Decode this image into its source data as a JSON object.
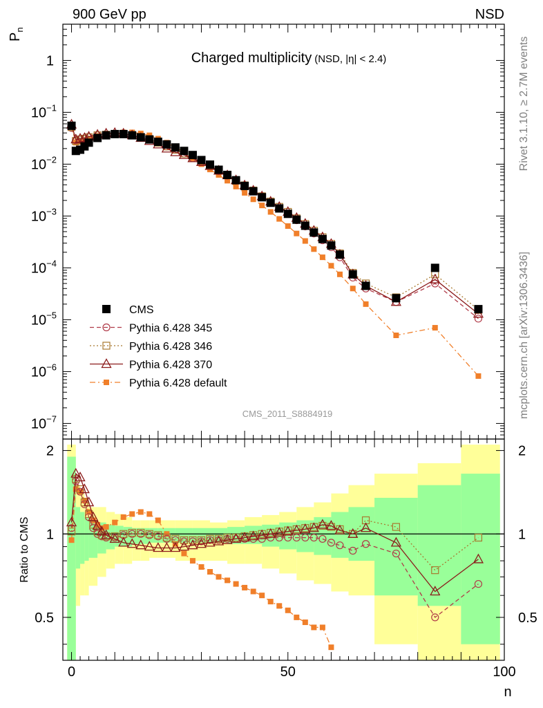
{
  "header": {
    "left": "900 GeV pp",
    "right": "NSD"
  },
  "side_labels": {
    "rivet": "Rivet 3.1.10, ≥ 2.7M events",
    "mcplots": "mcplots.cern.ch [arXiv:1306.3436]"
  },
  "chart_data": [
    {
      "type": "scatter",
      "panel": "main",
      "title": "Charged multiplicity",
      "subtitle": "(NSD, |η| < 2.4)",
      "ylabel": "P",
      "ylabel_sub": "n",
      "yscale": "log",
      "xlim": [
        -2,
        100
      ],
      "ylim": [
        5e-08,
        5
      ],
      "ytick_labels": [
        {
          "base": "1",
          "exp": ""
        },
        {
          "base": "10",
          "exp": "−1"
        },
        {
          "base": "10",
          "exp": "−2"
        },
        {
          "base": "10",
          "exp": "−3"
        },
        {
          "base": "10",
          "exp": "−4"
        },
        {
          "base": "10",
          "exp": "−5"
        },
        {
          "base": "10",
          "exp": "−6"
        },
        {
          "base": "10",
          "exp": "−7"
        }
      ],
      "ytick_values": [
        1,
        0.1,
        0.01,
        0.001,
        0.0001,
        1e-05,
        1e-06,
        1e-07
      ],
      "watermark": "CMS_2011_S8884919",
      "legend": {
        "placement": "bottom-left",
        "entries": [
          "CMS",
          "Pythia 6.428 345",
          "Pythia 6.428 346",
          "Pythia 6.428 370",
          "Pythia 6.428 default"
        ]
      },
      "series": [
        {
          "name": "CMS",
          "color": "#000000",
          "marker": "filled-square",
          "line": "none",
          "x": [
            0,
            1,
            2,
            3,
            4,
            6,
            8,
            10,
            12,
            14,
            16,
            18,
            20,
            22,
            24,
            26,
            28,
            30,
            32,
            34,
            36,
            38,
            40,
            42,
            44,
            46,
            48,
            50,
            52,
            54,
            56,
            58,
            60,
            62,
            65,
            68,
            75,
            84,
            94
          ],
          "values": [
            0.055,
            0.018,
            0.019,
            0.022,
            0.026,
            0.032,
            0.036,
            0.038,
            0.038,
            0.036,
            0.033,
            0.03,
            0.027,
            0.024,
            0.021,
            0.018,
            0.015,
            0.012,
            0.0098,
            0.0078,
            0.0062,
            0.0049,
            0.0038,
            0.003,
            0.0023,
            0.0018,
            0.0014,
            0.0011,
            0.00085,
            0.00065,
            0.00048,
            0.00036,
            0.00027,
            0.00018,
            7.5e-05,
            4.5e-05,
            2.6e-05,
            0.0001,
            1.6e-05
          ]
        },
        {
          "name": "Pythia 6.428 345",
          "color": "#b03a48",
          "marker": "open-circle",
          "line": "dashed",
          "x": [
            0,
            1,
            2,
            3,
            4,
            6,
            8,
            10,
            12,
            14,
            16,
            18,
            20,
            22,
            24,
            26,
            28,
            30,
            32,
            34,
            36,
            38,
            40,
            42,
            44,
            46,
            48,
            50,
            52,
            54,
            56,
            58,
            60,
            62,
            65,
            68,
            75,
            84,
            94
          ],
          "values": [
            0.05,
            0.029,
            0.03,
            0.031,
            0.033,
            0.036,
            0.037,
            0.038,
            0.038,
            0.036,
            0.033,
            0.03,
            0.026,
            0.022,
            0.019,
            0.016,
            0.013,
            0.011,
            0.0092,
            0.0074,
            0.006,
            0.0048,
            0.0038,
            0.003,
            0.0023,
            0.0018,
            0.0014,
            0.0011,
            0.00083,
            0.00063,
            0.00046,
            0.00034,
            0.00025,
            0.00016,
            6.5e-05,
            4e-05,
            2.2e-05,
            5e-05,
            1.05e-05
          ]
        },
        {
          "name": "Pythia 6.428 346",
          "color": "#a8782e",
          "marker": "open-square",
          "line": "dotted",
          "x": [
            0,
            1,
            2,
            3,
            4,
            6,
            8,
            10,
            12,
            14,
            16,
            18,
            20,
            22,
            24,
            26,
            28,
            30,
            32,
            34,
            36,
            38,
            40,
            42,
            44,
            46,
            48,
            50,
            52,
            54,
            56,
            58,
            60,
            62,
            65,
            68,
            75,
            84,
            94
          ],
          "values": [
            0.052,
            0.028,
            0.03,
            0.031,
            0.033,
            0.036,
            0.037,
            0.038,
            0.038,
            0.036,
            0.033,
            0.03,
            0.026,
            0.022,
            0.019,
            0.016,
            0.013,
            0.011,
            0.0093,
            0.0075,
            0.0061,
            0.0049,
            0.0039,
            0.0031,
            0.0024,
            0.0019,
            0.0015,
            0.0012,
            0.0009,
            0.0007,
            0.00052,
            0.00039,
            0.00029,
            0.00019,
            8e-05,
            5e-05,
            2.7e-05,
            7.5e-05,
            1.55e-05
          ]
        },
        {
          "name": "Pythia 6.428 370",
          "color": "#8b1a1a",
          "marker": "open-triangle",
          "line": "solid",
          "x": [
            0,
            1,
            2,
            3,
            4,
            6,
            8,
            10,
            12,
            14,
            16,
            18,
            20,
            22,
            24,
            26,
            28,
            30,
            32,
            34,
            36,
            38,
            40,
            42,
            44,
            46,
            48,
            50,
            52,
            54,
            56,
            58,
            60,
            62,
            65,
            68,
            75,
            84,
            94
          ],
          "values": [
            0.058,
            0.03,
            0.031,
            0.032,
            0.034,
            0.037,
            0.039,
            0.04,
            0.039,
            0.036,
            0.032,
            0.028,
            0.024,
            0.02,
            0.017,
            0.015,
            0.013,
            0.011,
            0.0092,
            0.0075,
            0.0061,
            0.0049,
            0.0039,
            0.0031,
            0.0024,
            0.0019,
            0.0015,
            0.0012,
            0.00092,
            0.00071,
            0.00052,
            0.00039,
            0.00029,
            0.00018,
            7.5e-05,
            4.5e-05,
            2.2e-05,
            6e-05,
            1.3e-05
          ]
        },
        {
          "name": "Pythia 6.428 default",
          "color": "#f07f2a",
          "marker": "filled-square-small",
          "line": "dashdot",
          "x": [
            0,
            1,
            2,
            3,
            4,
            6,
            8,
            10,
            12,
            14,
            16,
            18,
            20,
            22,
            24,
            26,
            28,
            30,
            32,
            34,
            36,
            38,
            40,
            42,
            44,
            46,
            48,
            50,
            52,
            54,
            56,
            58,
            60,
            62,
            65,
            68,
            75,
            84,
            94
          ],
          "values": [
            0.052,
            0.026,
            0.027,
            0.029,
            0.031,
            0.035,
            0.038,
            0.04,
            0.041,
            0.041,
            0.039,
            0.036,
            0.031,
            0.026,
            0.021,
            0.017,
            0.013,
            0.01,
            0.0079,
            0.0062,
            0.0048,
            0.0037,
            0.0028,
            0.0021,
            0.0016,
            0.0012,
            0.00088,
            0.00064,
            0.00046,
            0.00033,
            0.00023,
            0.00016,
            0.00011,
            7.5e-05,
            4e-05,
            2e-05,
            5e-06,
            7e-06,
            8.2e-07
          ]
        }
      ]
    },
    {
      "type": "line",
      "panel": "ratio",
      "ylabel": "Ratio to CMS",
      "xlabel": "n",
      "xlim": [
        -2,
        100
      ],
      "ylim": [
        0.35,
        2.2
      ],
      "xticks": [
        0,
        50,
        100
      ],
      "xtick_labels": [
        "0",
        "50",
        "100"
      ],
      "ytick_values": [
        2,
        1,
        0.5
      ],
      "ytick_labels": [
        "2",
        "1",
        "0.5"
      ],
      "reference_line": 1,
      "bands": {
        "n_edges": [
          -1,
          1,
          2,
          3,
          4,
          6,
          8,
          10,
          12,
          14,
          16,
          18,
          20,
          24,
          28,
          32,
          36,
          40,
          44,
          48,
          52,
          56,
          60,
          64,
          70,
          80,
          90,
          99
        ],
        "yellow_low": [
          0.35,
          0.55,
          0.6,
          0.6,
          0.65,
          0.7,
          0.75,
          0.78,
          0.78,
          0.8,
          0.8,
          0.82,
          0.82,
          0.8,
          0.8,
          0.8,
          0.78,
          0.78,
          0.75,
          0.72,
          0.68,
          0.66,
          0.62,
          0.6,
          0.4,
          0.35,
          0.35
        ],
        "yellow_high": [
          2.1,
          1.5,
          1.4,
          1.3,
          1.25,
          1.25,
          1.2,
          1.18,
          1.15,
          1.12,
          1.12,
          1.12,
          1.12,
          1.12,
          1.12,
          1.1,
          1.12,
          1.15,
          1.17,
          1.2,
          1.25,
          1.3,
          1.4,
          1.5,
          1.65,
          1.8,
          2.1
        ],
        "green_low": [
          0.35,
          0.75,
          0.78,
          0.8,
          0.82,
          0.85,
          0.88,
          0.9,
          0.9,
          0.92,
          0.92,
          0.93,
          0.93,
          0.93,
          0.93,
          0.93,
          0.92,
          0.92,
          0.9,
          0.88,
          0.86,
          0.84,
          0.82,
          0.8,
          0.6,
          0.55,
          0.4
        ],
        "green_high": [
          1.9,
          1.25,
          1.2,
          1.15,
          1.12,
          1.1,
          1.08,
          1.07,
          1.06,
          1.05,
          1.05,
          1.05,
          1.05,
          1.05,
          1.05,
          1.05,
          1.06,
          1.07,
          1.08,
          1.1,
          1.12,
          1.15,
          1.2,
          1.25,
          1.35,
          1.5,
          1.65
        ]
      },
      "series": [
        {
          "name": "Pythia 6.428 345",
          "color": "#b03a48",
          "x": [
            0,
            1,
            2,
            3,
            4,
            5,
            6,
            7,
            8,
            10,
            12,
            14,
            16,
            18,
            20,
            22,
            24,
            26,
            28,
            30,
            32,
            34,
            36,
            38,
            40,
            42,
            44,
            46,
            48,
            50,
            52,
            54,
            56,
            58,
            60,
            62,
            65,
            68,
            75,
            84,
            94
          ],
          "values": [
            1.05,
            1.55,
            1.42,
            1.28,
            1.15,
            1.05,
            1.0,
            0.98,
            0.97,
            0.97,
            0.99,
            1.0,
            1.0,
            0.99,
            0.98,
            0.96,
            0.95,
            0.94,
            0.94,
            0.94,
            0.95,
            0.95,
            0.96,
            0.96,
            0.96,
            0.96,
            0.96,
            0.97,
            0.97,
            0.97,
            0.97,
            0.97,
            0.97,
            0.96,
            0.93,
            0.91,
            0.87,
            0.92,
            0.85,
            0.5,
            0.66
          ]
        },
        {
          "name": "Pythia 6.428 346",
          "color": "#a8782e",
          "x": [
            0,
            1,
            2,
            3,
            4,
            5,
            6,
            7,
            8,
            10,
            12,
            14,
            16,
            18,
            20,
            22,
            24,
            26,
            28,
            30,
            32,
            34,
            36,
            38,
            40,
            42,
            44,
            46,
            48,
            50,
            52,
            54,
            56,
            58,
            60,
            62,
            65,
            68,
            75,
            84,
            94
          ],
          "values": [
            1.02,
            1.58,
            1.45,
            1.3,
            1.18,
            1.08,
            1.02,
            0.99,
            0.98,
            0.98,
            1.0,
            1.01,
            1.01,
            1.0,
            0.99,
            0.97,
            0.96,
            0.95,
            0.95,
            0.95,
            0.96,
            0.96,
            0.97,
            0.97,
            0.98,
            0.99,
            1.0,
            1.01,
            1.02,
            1.03,
            1.04,
            1.05,
            1.06,
            1.07,
            1.06,
            1.04,
            1.0,
            1.12,
            1.06,
            0.74,
            0.97
          ]
        },
        {
          "name": "Pythia 6.428 370",
          "color": "#8b1a1a",
          "x": [
            0,
            1,
            2,
            3,
            4,
            5,
            6,
            7,
            8,
            10,
            12,
            14,
            16,
            18,
            20,
            22,
            24,
            26,
            28,
            30,
            32,
            34,
            36,
            38,
            40,
            42,
            44,
            46,
            48,
            50,
            52,
            54,
            56,
            58,
            60,
            62,
            65,
            68,
            75,
            84,
            94
          ],
          "values": [
            1.1,
            1.65,
            1.6,
            1.45,
            1.3,
            1.15,
            1.07,
            1.02,
            0.99,
            0.96,
            0.93,
            0.92,
            0.91,
            0.9,
            0.89,
            0.89,
            0.89,
            0.9,
            0.91,
            0.92,
            0.93,
            0.94,
            0.95,
            0.96,
            0.97,
            0.98,
            0.99,
            1.0,
            1.01,
            1.02,
            1.03,
            1.04,
            1.05,
            1.08,
            1.07,
            1.03,
            1.0,
            1.05,
            0.93,
            0.62,
            0.81
          ]
        },
        {
          "name": "Pythia 6.428 default",
          "color": "#f07f2a",
          "x": [
            0,
            1,
            2,
            3,
            4,
            5,
            6,
            7,
            8,
            10,
            12,
            14,
            16,
            18,
            20,
            22,
            24,
            26,
            28,
            30,
            32,
            34,
            36,
            38,
            40,
            42,
            44,
            46,
            48,
            50,
            52,
            54,
            56,
            58,
            60
          ],
          "values": [
            0.95,
            1.45,
            1.42,
            1.32,
            1.2,
            1.12,
            1.08,
            1.05,
            1.06,
            1.1,
            1.15,
            1.18,
            1.2,
            1.18,
            1.12,
            1.0,
            0.92,
            0.85,
            0.8,
            0.76,
            0.73,
            0.7,
            0.68,
            0.66,
            0.64,
            0.62,
            0.6,
            0.57,
            0.55,
            0.53,
            0.5,
            0.48,
            0.46,
            0.46,
            0.39
          ]
        }
      ]
    }
  ]
}
